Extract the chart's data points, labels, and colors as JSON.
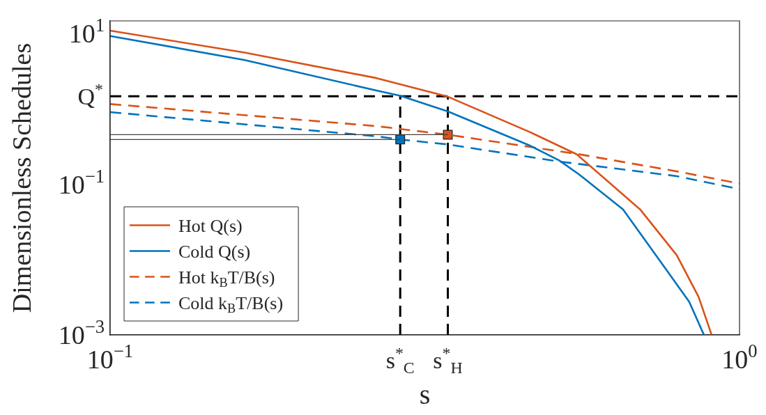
{
  "chart_data": {
    "type": "line",
    "xlabel": "s",
    "ylabel": "Dimensionless Schedules",
    "log": "xy",
    "legend": "bottom left",
    "xlim": [
      0.1,
      1
    ],
    "xticks": [
      {
        "value": 0.1,
        "label": "10$^{−1}$"
      },
      {
        "value": 1,
        "label": "10$^{0}$"
      }
    ],
    "ylim": [
      0.001,
      14.7
    ],
    "yticks": [
      {
        "value": 0.001,
        "label": "10$^{−3}$"
      },
      {
        "value": 0.1,
        "label": "10$^{−1}$"
      },
      {
        "value": 10,
        "label": "10$^{1}$"
      }
    ],
    "ref_lines": [
      {
        "axis": "y",
        "value": 1.47,
        "label": "Q$^{*}$",
        "color": "#000000",
        "line_style": "dashed"
      },
      {
        "axis": "x",
        "value": 0.289,
        "label": "s$^{*}$$_{C}$",
        "color": "#000000",
        "line_style": "dashed"
      },
      {
        "axis": "x",
        "value": 0.344,
        "label": "s$^{*}$$_{H}$",
        "color": "#000000",
        "line_style": "dashed"
      }
    ],
    "series": [
      {
        "name": "Hot Q(s)",
        "color": "#d95319",
        "line_style": "solid",
        "x": [
          0.1,
          0.1636,
          0.265,
          0.344,
          0.465,
          0.551,
          0.695,
          0.795,
          0.861,
          0.903
        ],
        "values": [
          10.9,
          5.58,
          2.56,
          1.45,
          0.49,
          0.25,
          0.0464,
          0.0114,
          0.0032,
          0.001
        ]
      },
      {
        "name": "Cold Q(s)",
        "color": "#0072bd",
        "line_style": "solid",
        "x": [
          0.1,
          0.1636,
          0.265,
          0.289,
          0.344,
          0.465,
          0.517,
          0.556,
          0.653,
          0.76,
          0.832,
          0.878
        ],
        "values": [
          9.27,
          4.45,
          1.75,
          1.49,
          0.926,
          0.324,
          0.207,
          0.135,
          0.0464,
          0.0079,
          0.00275,
          0.001
        ]
      },
      {
        "name": "Hot k$_{B}$T/B(s)",
        "color": "#d95319",
        "line_style": "dashed",
        "x": [
          0.1,
          0.265,
          0.344,
          0.551,
          0.795,
          1
        ],
        "values": [
          1.16,
          0.59,
          0.454,
          0.253,
          0.148,
          0.102
        ]
      },
      {
        "name": "Cold k$_{B}$T/B(s)",
        "color": "#0072bd",
        "line_style": "dashed",
        "x": [
          0.1,
          0.265,
          0.289,
          0.344,
          0.517,
          0.795,
          1
        ],
        "values": [
          0.905,
          0.432,
          0.392,
          0.337,
          0.2,
          0.128,
          0.086
        ]
      },
      {
        "color": "#404040",
        "line_style": "solid",
        "x": [
          0.1,
          0.344
        ],
        "values": [
          0.454,
          0.454
        ]
      },
      {
        "color": "#404040",
        "line_style": "solid",
        "x": [
          0.1,
          0.289
        ],
        "values": [
          0.392,
          0.392
        ]
      },
      {
        "type": "scatter",
        "marker": "square",
        "color": "#d95319",
        "x": [
          0.344
        ],
        "values": [
          0.454
        ]
      },
      {
        "type": "scatter",
        "marker": "square",
        "color": "#0072bd",
        "x": [
          0.289
        ],
        "values": [
          0.392
        ]
      }
    ]
  }
}
